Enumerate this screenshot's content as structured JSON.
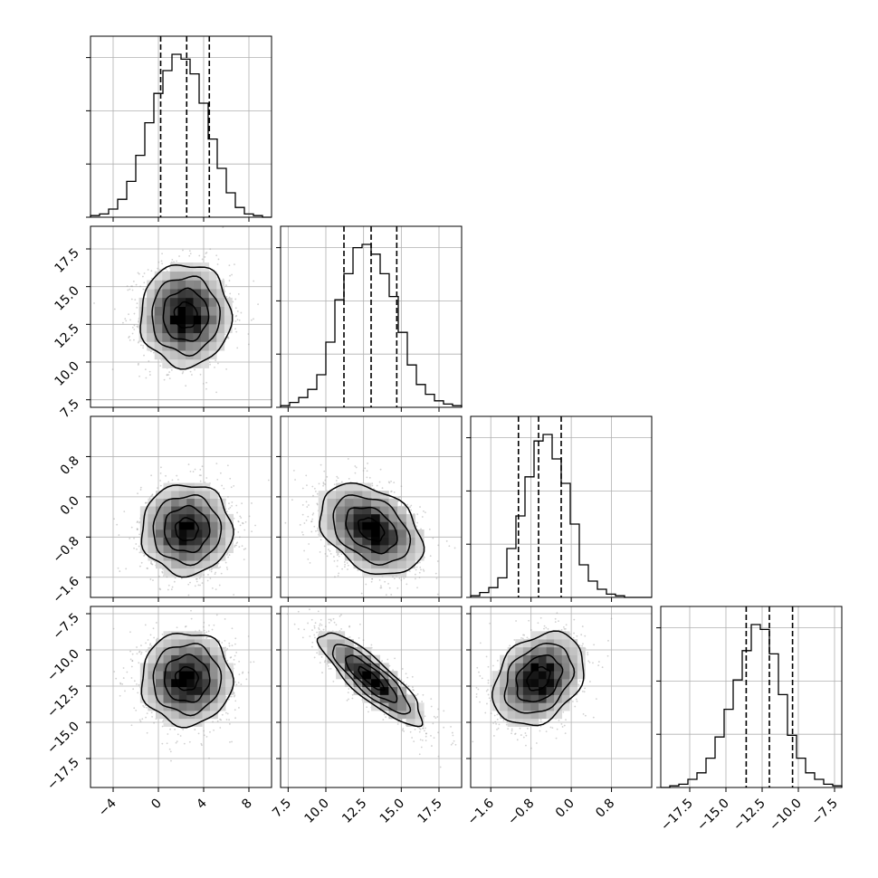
{
  "chart_data": {
    "type": "corner",
    "title": "",
    "grid": true,
    "parameters": [
      {
        "index": 0,
        "label": "",
        "range": [
          -6.0,
          10.0
        ],
        "ticks": [
          {
            "value": -4,
            "label": "−4"
          },
          {
            "value": 0,
            "label": "0"
          },
          {
            "value": 4,
            "label": "4"
          },
          {
            "value": 8,
            "label": "8"
          }
        ],
        "quantiles": [
          0.2,
          2.5,
          4.5
        ],
        "histogram": [
          1,
          2,
          5,
          11,
          22,
          38,
          58,
          76,
          90,
          100,
          97,
          88,
          70,
          48,
          30,
          15,
          6,
          2,
          1,
          0
        ]
      },
      {
        "index": 1,
        "label": "",
        "range": [
          7.0,
          19.0
        ],
        "ticks": [
          {
            "value": 7.5,
            "label": "7.5"
          },
          {
            "value": 10.0,
            "label": "10.0"
          },
          {
            "value": 12.5,
            "label": "12.5"
          },
          {
            "value": 15.0,
            "label": "15.0"
          },
          {
            "value": 17.5,
            "label": "17.5"
          }
        ],
        "quantiles": [
          11.2,
          13.0,
          14.7
        ],
        "histogram": [
          1,
          3,
          6,
          11,
          20,
          40,
          66,
          82,
          98,
          100,
          94,
          82,
          68,
          46,
          26,
          14,
          8,
          4,
          2,
          1
        ]
      },
      {
        "index": 2,
        "label": "",
        "range": [
          -2.0,
          1.6
        ],
        "ticks": [
          {
            "value": -1.6,
            "label": "−1.6"
          },
          {
            "value": -0.8,
            "label": "−0.8"
          },
          {
            "value": 0.0,
            "label": "0.0"
          },
          {
            "value": 0.8,
            "label": "0.8"
          }
        ],
        "quantiles": [
          -1.05,
          -0.65,
          -0.2
        ],
        "histogram": [
          1,
          3,
          6,
          12,
          30,
          50,
          74,
          96,
          100,
          85,
          70,
          45,
          20,
          10,
          5,
          2,
          1,
          0,
          0,
          0
        ]
      },
      {
        "index": 3,
        "label": "",
        "range": [
          -19.5,
          -7.0
        ],
        "ticks": [
          {
            "value": -17.5,
            "label": "−17.5"
          },
          {
            "value": -15.0,
            "label": "−15.0"
          },
          {
            "value": -12.5,
            "label": "−12.5"
          },
          {
            "value": -10.0,
            "label": "−10.0"
          },
          {
            "value": -7.5,
            "label": "−7.5"
          }
        ],
        "quantiles": [
          -13.6,
          -12.0,
          -10.4
        ],
        "histogram": [
          0,
          1,
          2,
          5,
          9,
          18,
          31,
          48,
          66,
          84,
          100,
          97,
          82,
          57,
          32,
          18,
          9,
          5,
          2,
          1
        ]
      }
    ],
    "pairs": [
      {
        "row": 1,
        "col": 0,
        "center": [
          2.4,
          13.1
        ],
        "sigma": [
          2.0,
          1.7
        ],
        "rho": 0.0
      },
      {
        "row": 2,
        "col": 0,
        "center": [
          2.5,
          -0.65
        ],
        "sigma": [
          2.0,
          0.45
        ],
        "rho": 0.0
      },
      {
        "row": 2,
        "col": 1,
        "center": [
          13.0,
          -0.65
        ],
        "sigma": [
          1.7,
          0.45
        ],
        "rho": -0.35
      },
      {
        "row": 3,
        "col": 0,
        "center": [
          2.5,
          -12.0
        ],
        "sigma": [
          2.0,
          1.6
        ],
        "rho": 0.0
      },
      {
        "row": 3,
        "col": 1,
        "center": [
          13.0,
          -12.0
        ],
        "sigma": [
          1.7,
          1.6
        ],
        "rho": -0.85
      },
      {
        "row": 3,
        "col": 2,
        "center": [
          -0.65,
          -12.0
        ],
        "sigma": [
          0.45,
          1.6
        ],
        "rho": 0.3
      }
    ],
    "contour_levels_sigma": [
      0.5,
      1.0,
      1.5,
      2.0
    ],
    "histogram_bins": 20,
    "colors": {
      "line": "#000000",
      "grid": "#b0b0b0",
      "scatter": "#9a9a9a"
    }
  }
}
